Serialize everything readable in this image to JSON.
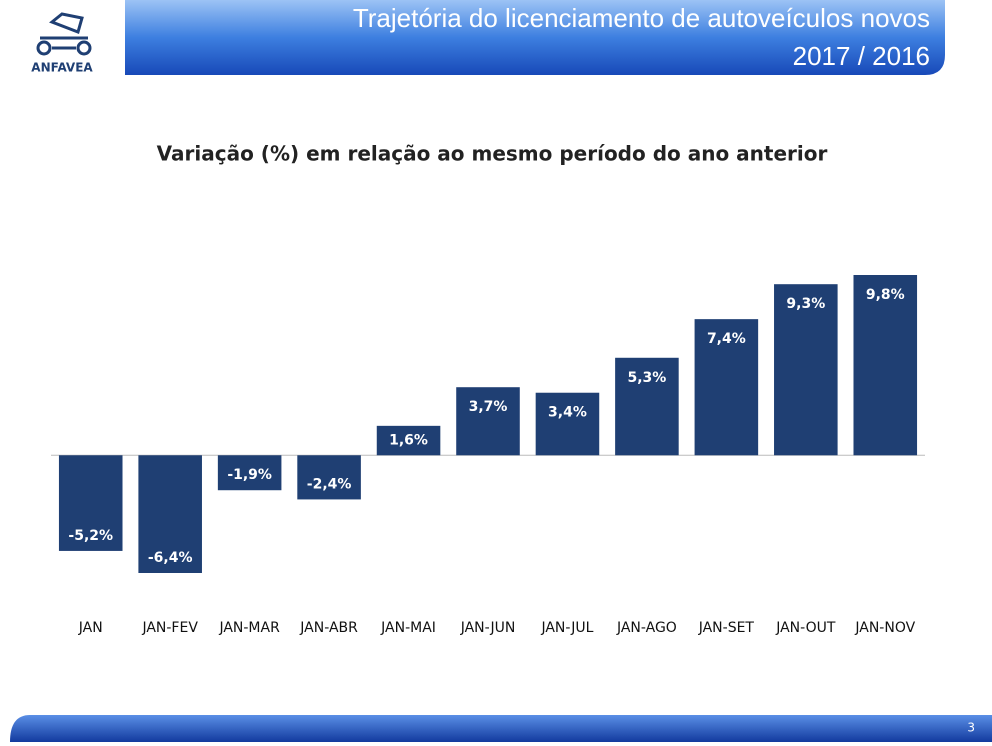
{
  "header": {
    "logo": "ANFAVEA",
    "title": "Trajetória do licenciamento de autoveículos novos",
    "subtitle": "2017 / 2016"
  },
  "chart_data": {
    "type": "bar",
    "title": "Variação (%) em relação ao mesmo período do ano anterior",
    "categories": [
      "JAN",
      "JAN-FEV",
      "JAN-MAR",
      "JAN-ABR",
      "JAN-MAI",
      "JAN-JUN",
      "JAN-JUL",
      "JAN-AGO",
      "JAN-SET",
      "JAN-OUT",
      "JAN-NOV"
    ],
    "values": [
      -5.2,
      -6.4,
      -1.9,
      -2.4,
      1.6,
      3.7,
      3.4,
      5.3,
      7.4,
      9.3,
      9.8
    ],
    "value_labels": [
      "-5,2%",
      "-6,4%",
      "-1,9%",
      "-2,4%",
      "1,6%",
      "3,7%",
      "3,4%",
      "5,3%",
      "7,4%",
      "9,3%",
      "9,8%"
    ],
    "color": "#1f3f73"
  },
  "footer": {
    "page": "3"
  }
}
